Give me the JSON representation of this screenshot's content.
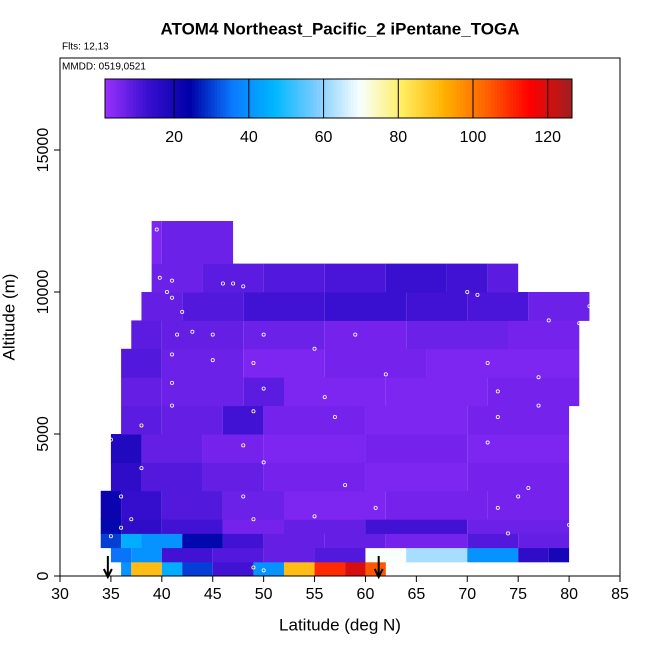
{
  "chart_data": {
    "type": "curtain",
    "title": "ATOM4 Northeast_Pacific_2 iPentane_TOGA",
    "subtitle": "Flts: 12,13",
    "annotation": "MMDD: 0519,0521",
    "x_label": "Latitude (deg N)",
    "y_label": "Altitude (m)",
    "xlim": [
      30,
      85
    ],
    "ylim": [
      0,
      18240
    ],
    "xticks": [
      30,
      35,
      40,
      45,
      50,
      55,
      60,
      65,
      70,
      75,
      80,
      85
    ],
    "yticks": [
      0,
      5000,
      10000,
      15000
    ],
    "clim": [
      1.5,
      126.5
    ],
    "cticks": [
      20,
      40,
      60,
      80,
      100,
      120
    ],
    "colormap": [
      "#9b30ff",
      "#3a10d0",
      "#0000a8",
      "#0a7aff",
      "#00b8ff",
      "#80ccff",
      "#f8ffff",
      "#ffee60",
      "#ffb000",
      "#ff6000",
      "#ff0000",
      "#a02020"
    ],
    "cells": [
      [
        36,
        37,
        0,
        500,
        40
      ],
      [
        37,
        40,
        0,
        500,
        90
      ],
      [
        40,
        42,
        0,
        500,
        45
      ],
      [
        42,
        45,
        0,
        500,
        30
      ],
      [
        45,
        49,
        0,
        500,
        12
      ],
      [
        49,
        52,
        0,
        500,
        40
      ],
      [
        52,
        55,
        0,
        500,
        90
      ],
      [
        55,
        58,
        0,
        500,
        110
      ],
      [
        58,
        60,
        0,
        500,
        120
      ],
      [
        60,
        62,
        0,
        500,
        105
      ],
      [
        35,
        37,
        500,
        1000,
        35
      ],
      [
        37,
        40,
        500,
        1000,
        40
      ],
      [
        40,
        45,
        500,
        1000,
        12
      ],
      [
        45,
        50,
        500,
        1000,
        10
      ],
      [
        50,
        55,
        500,
        1000,
        8
      ],
      [
        55,
        60,
        500,
        1000,
        10
      ],
      [
        60,
        64,
        500,
        1000,
        70
      ],
      [
        64,
        70,
        500,
        1000,
        62
      ],
      [
        70,
        75,
        500,
        1000,
        40
      ],
      [
        75,
        78,
        500,
        1000,
        15
      ],
      [
        78,
        80,
        500,
        1000,
        20
      ],
      [
        34,
        36,
        1000,
        1500,
        30
      ],
      [
        36,
        38,
        1000,
        1500,
        45
      ],
      [
        38,
        42,
        1000,
        1500,
        40
      ],
      [
        42,
        46,
        1000,
        1500,
        25
      ],
      [
        46,
        50,
        1000,
        1500,
        12
      ],
      [
        50,
        56,
        1000,
        1500,
        8
      ],
      [
        56,
        62,
        1000,
        1500,
        8
      ],
      [
        62,
        70,
        1000,
        1500,
        6
      ],
      [
        70,
        75,
        1000,
        1500,
        10
      ],
      [
        75,
        80,
        1000,
        1500,
        8
      ],
      [
        34,
        36,
        1500,
        2000,
        25
      ],
      [
        36,
        40,
        1500,
        2000,
        15
      ],
      [
        40,
        46,
        1500,
        2000,
        12
      ],
      [
        46,
        52,
        1500,
        2000,
        6
      ],
      [
        52,
        60,
        1500,
        2000,
        8
      ],
      [
        60,
        70,
        1500,
        2000,
        12
      ],
      [
        70,
        80,
        1500,
        2000,
        7
      ],
      [
        34,
        36,
        2000,
        3000,
        22
      ],
      [
        36,
        40,
        2000,
        3000,
        14
      ],
      [
        40,
        46,
        2000,
        3000,
        10
      ],
      [
        46,
        52,
        2000,
        3000,
        7
      ],
      [
        52,
        62,
        2000,
        3000,
        5
      ],
      [
        62,
        72,
        2000,
        3000,
        6
      ],
      [
        72,
        80,
        2000,
        3000,
        6
      ],
      [
        35,
        38,
        3000,
        4000,
        15
      ],
      [
        38,
        44,
        3000,
        4000,
        10
      ],
      [
        44,
        50,
        3000,
        4000,
        8
      ],
      [
        50,
        60,
        3000,
        4000,
        6
      ],
      [
        60,
        70,
        3000,
        4000,
        5
      ],
      [
        70,
        80,
        3000,
        4000,
        6
      ],
      [
        35,
        38,
        4000,
        5000,
        18
      ],
      [
        38,
        44,
        4000,
        5000,
        8
      ],
      [
        44,
        50,
        4000,
        5000,
        6
      ],
      [
        50,
        60,
        4000,
        5000,
        5
      ],
      [
        60,
        70,
        4000,
        5000,
        6
      ],
      [
        70,
        80,
        4000,
        5000,
        5
      ],
      [
        36,
        40,
        5000,
        6000,
        9
      ],
      [
        40,
        46,
        5000,
        6000,
        8
      ],
      [
        46,
        50,
        5000,
        6000,
        12
      ],
      [
        50,
        60,
        5000,
        6000,
        6
      ],
      [
        60,
        70,
        5000,
        6000,
        5
      ],
      [
        70,
        80,
        5000,
        6000,
        6
      ],
      [
        36,
        40,
        6000,
        7000,
        8
      ],
      [
        40,
        48,
        6000,
        7000,
        7
      ],
      [
        48,
        52,
        6000,
        7000,
        9
      ],
      [
        52,
        62,
        6000,
        7000,
        5
      ],
      [
        62,
        72,
        6000,
        7000,
        5
      ],
      [
        72,
        81,
        6000,
        7000,
        6
      ],
      [
        36,
        40,
        7000,
        8000,
        10
      ],
      [
        40,
        48,
        7000,
        8000,
        7
      ],
      [
        48,
        56,
        7000,
        8000,
        5
      ],
      [
        56,
        66,
        7000,
        8000,
        6
      ],
      [
        66,
        81,
        7000,
        8000,
        5
      ],
      [
        37,
        40,
        8000,
        9000,
        9
      ],
      [
        40,
        48,
        8000,
        9000,
        8
      ],
      [
        48,
        56,
        8000,
        9000,
        7
      ],
      [
        56,
        64,
        8000,
        9000,
        6
      ],
      [
        64,
        74,
        8000,
        9000,
        7
      ],
      [
        74,
        81,
        8000,
        9000,
        6
      ],
      [
        38,
        42,
        9000,
        10000,
        8
      ],
      [
        42,
        48,
        9000,
        10000,
        10
      ],
      [
        48,
        56,
        9000,
        10000,
        12
      ],
      [
        56,
        64,
        9000,
        10000,
        13
      ],
      [
        64,
        70,
        9000,
        10000,
        12
      ],
      [
        70,
        76,
        9000,
        10000,
        11
      ],
      [
        76,
        82,
        9000,
        10000,
        7
      ],
      [
        39,
        44,
        10000,
        11000,
        7
      ],
      [
        44,
        50,
        10000,
        11000,
        9
      ],
      [
        50,
        56,
        10000,
        11000,
        10
      ],
      [
        56,
        62,
        10000,
        11000,
        11
      ],
      [
        62,
        68,
        10000,
        11000,
        13
      ],
      [
        68,
        72,
        10000,
        11000,
        12
      ],
      [
        72,
        75,
        10000,
        11000,
        9
      ],
      [
        39,
        40,
        11000,
        12500,
        5
      ],
      [
        40,
        47,
        11000,
        12500,
        7
      ]
    ],
    "samples": [
      [
        39.5,
        12200
      ],
      [
        39.8,
        10500
      ],
      [
        41,
        10400
      ],
      [
        40.5,
        10000
      ],
      [
        41,
        9800
      ],
      [
        42,
        9300
      ],
      [
        46,
        10300
      ],
      [
        47,
        10300
      ],
      [
        48,
        10200
      ],
      [
        43,
        8600
      ],
      [
        41.5,
        8500
      ],
      [
        45,
        8500
      ],
      [
        41,
        7800
      ],
      [
        45,
        7600
      ],
      [
        41,
        6800
      ],
      [
        41,
        6000
      ],
      [
        50,
        8500
      ],
      [
        49,
        7500
      ],
      [
        55,
        8000
      ],
      [
        59,
        8500
      ],
      [
        62,
        7100
      ],
      [
        56,
        6300
      ],
      [
        57,
        5600
      ],
      [
        50,
        6600
      ],
      [
        49,
        5800
      ],
      [
        48,
        4600
      ],
      [
        50,
        4000
      ],
      [
        38,
        3800
      ],
      [
        35,
        4800
      ],
      [
        38,
        5300
      ],
      [
        48,
        2800
      ],
      [
        49,
        2000
      ],
      [
        58,
        3200
      ],
      [
        61,
        2400
      ],
      [
        72,
        7500
      ],
      [
        73,
        6500
      ],
      [
        73,
        5600
      ],
      [
        72,
        4700
      ],
      [
        70,
        10000
      ],
      [
        71,
        9900
      ],
      [
        78,
        9000
      ],
      [
        81,
        8900
      ],
      [
        82,
        9500
      ],
      [
        77,
        7000
      ],
      [
        77,
        6000
      ],
      [
        75,
        2800
      ],
      [
        76,
        3100
      ],
      [
        80,
        1800
      ],
      [
        73,
        2400
      ],
      [
        74,
        1500
      ],
      [
        35,
        1400
      ],
      [
        36,
        1700
      ],
      [
        37,
        2000
      ],
      [
        55,
        2100
      ],
      [
        50,
        200
      ],
      [
        49,
        300
      ],
      [
        36,
        2800
      ]
    ],
    "arrow_lats": [
      34.7,
      61.3
    ]
  }
}
